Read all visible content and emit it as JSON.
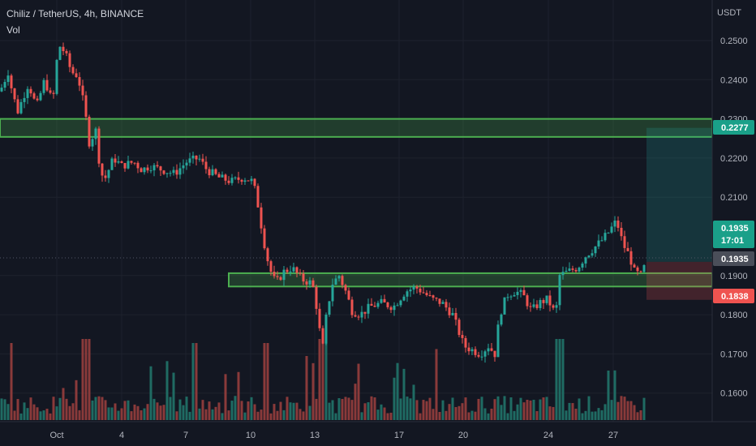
{
  "header": {
    "title": "Chiliz / TetherUS, 4h, BINANCE",
    "vol_label": "Vol",
    "unit": "USDT"
  },
  "chart_data": {
    "type": "candlestick",
    "title": "Chiliz / TetherUS, 4h, BINANCE",
    "y_axis": {
      "unit": "USDT",
      "range": [
        0.155,
        0.26
      ],
      "ticks": [
        "0.1600",
        "0.1700",
        "0.1800",
        "0.1900",
        "0.2100",
        "0.2200",
        "0.2300",
        "0.2400",
        "0.2500"
      ]
    },
    "x_axis": {
      "ticks": [
        "Oct",
        "4",
        "7",
        "10",
        "13",
        "17",
        "20",
        "24",
        "27"
      ]
    },
    "price_tags": {
      "resistance": "0.2277",
      "current": "0.1935",
      "countdown": "17:01",
      "crosshair": "0.1935",
      "stop": "0.1838"
    },
    "zones": [
      {
        "name": "resistance-zone",
        "low": 0.2254,
        "high": 0.23
      },
      {
        "name": "support-zone",
        "low": 0.1872,
        "high": 0.1906
      }
    ],
    "position": {
      "entry": 0.1935,
      "target": 0.2277,
      "stop": 0.1838
    },
    "colors": {
      "up": "#26a69a",
      "down": "#ef5350",
      "zone": "#4caf50",
      "target": "#26a69a",
      "stop": "#ef5350"
    },
    "legend": {
      "volume": "Vol"
    }
  }
}
